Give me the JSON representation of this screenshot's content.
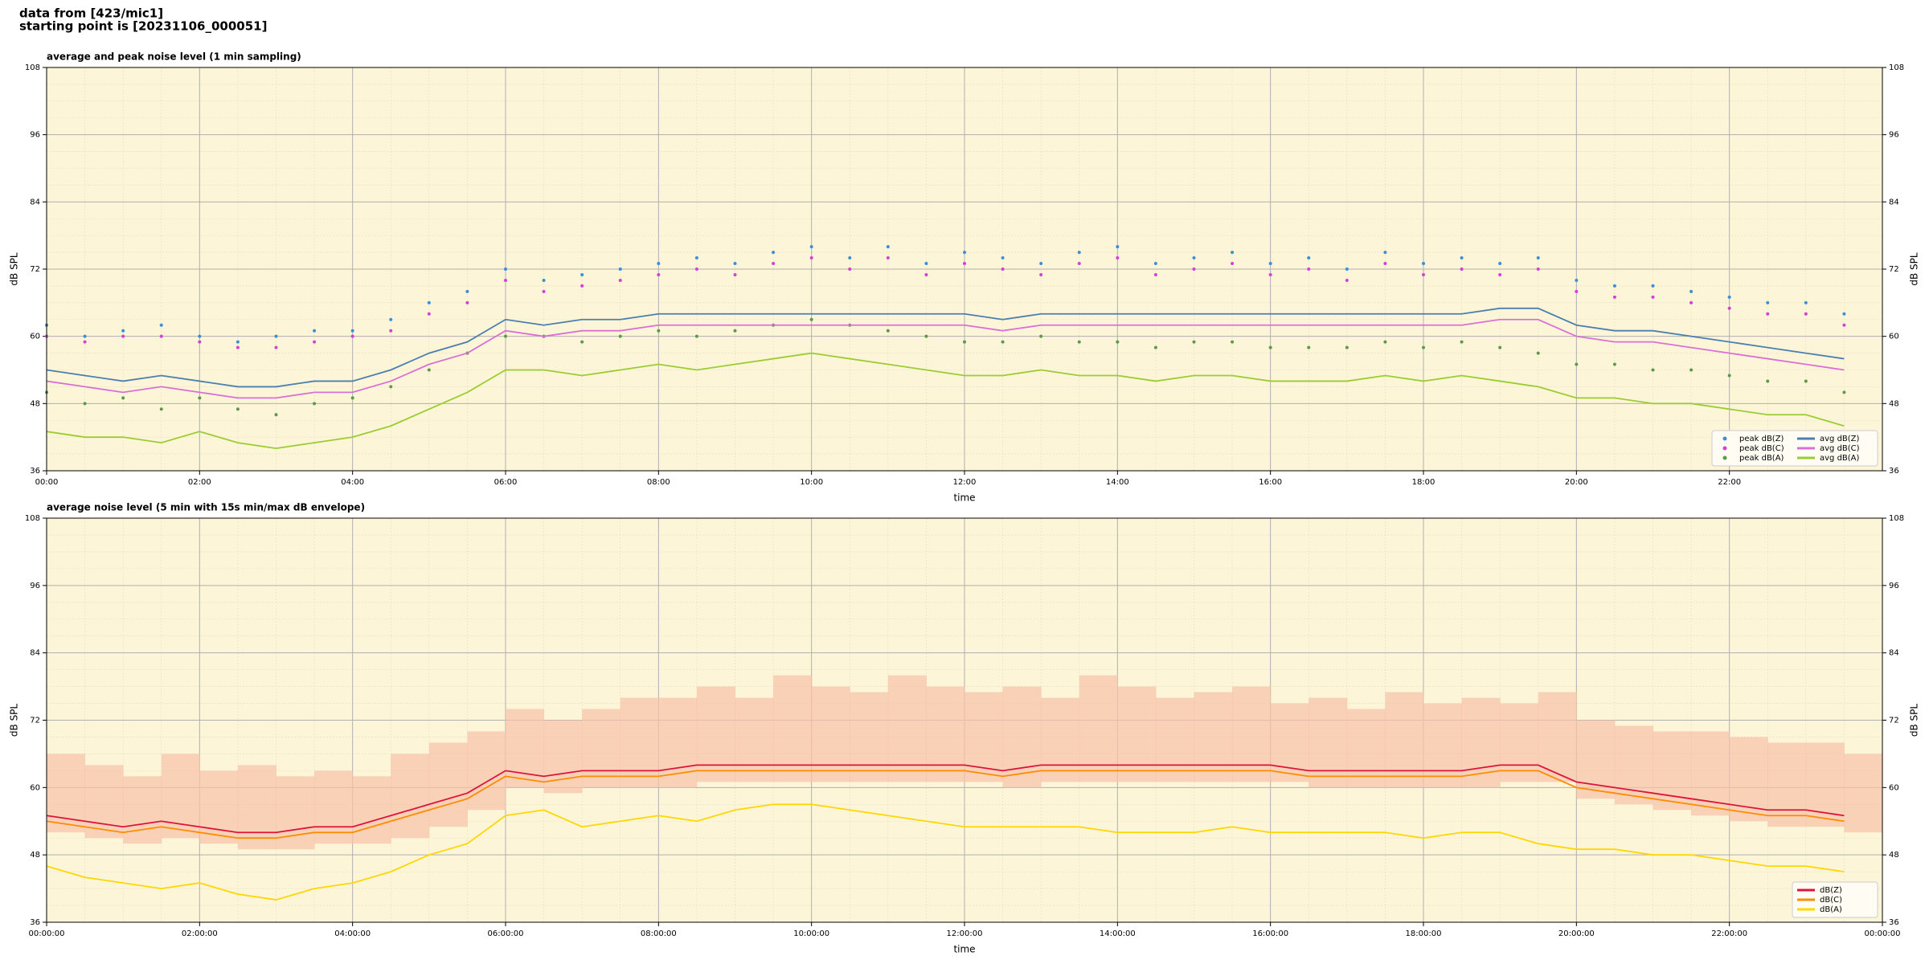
{
  "header": {
    "line1": "data from [423/mic1]",
    "line2": "starting point is [20231106_000051]"
  },
  "chart_data": [
    {
      "type": "line",
      "title": "average and peak noise level (1 min sampling)",
      "x_label": "time",
      "y_label": "dB SPL",
      "xlim": [
        0,
        24
      ],
      "ylim": [
        36,
        108
      ],
      "yticks": [
        36,
        48,
        60,
        72,
        84,
        96,
        108
      ],
      "xticks": [
        {
          "value": 0,
          "label": "00:00"
        },
        {
          "value": 2,
          "label": "02:00"
        },
        {
          "value": 4,
          "label": "04:00"
        },
        {
          "value": 6,
          "label": "06:00"
        },
        {
          "value": 8,
          "label": "08:00"
        },
        {
          "value": 10,
          "label": "10:00"
        },
        {
          "value": 12,
          "label": "12:00"
        },
        {
          "value": 14,
          "label": "14:00"
        },
        {
          "value": 16,
          "label": "16:00"
        },
        {
          "value": 18,
          "label": "18:00"
        },
        {
          "value": 20,
          "label": "20:00"
        },
        {
          "value": 22,
          "label": "22:00"
        }
      ],
      "grid": true,
      "legend": "lower right",
      "background": "#fdf5d8",
      "x": [
        0,
        0.5,
        1,
        1.5,
        2,
        2.5,
        3,
        3.5,
        4,
        4.5,
        5,
        5.5,
        6,
        6.5,
        7,
        7.5,
        8,
        8.5,
        9,
        9.5,
        10,
        10.5,
        11,
        11.5,
        12,
        12.5,
        13,
        13.5,
        14,
        14.5,
        15,
        15.5,
        16,
        16.5,
        17,
        17.5,
        18,
        18.5,
        19,
        19.5,
        20,
        20.5,
        21,
        21.5,
        22,
        22.5,
        23,
        23.5
      ],
      "series": [
        {
          "name": "peak dB(Z)",
          "type": "scatter",
          "color": "#3a8fd9",
          "values": [
            62,
            60,
            61,
            62,
            60,
            59,
            60,
            61,
            61,
            63,
            66,
            68,
            72,
            70,
            71,
            72,
            73,
            74,
            73,
            75,
            76,
            74,
            76,
            73,
            75,
            74,
            73,
            75,
            76,
            73,
            74,
            75,
            73,
            74,
            72,
            75,
            73,
            74,
            73,
            74,
            70,
            69,
            69,
            68,
            67,
            66,
            66,
            64
          ]
        },
        {
          "name": "peak dB(C)",
          "type": "scatter",
          "color": "#d63fd6",
          "values": [
            60,
            59,
            60,
            60,
            59,
            58,
            58,
            59,
            60,
            61,
            64,
            66,
            70,
            68,
            69,
            70,
            71,
            72,
            71,
            73,
            74,
            72,
            74,
            71,
            73,
            72,
            71,
            73,
            74,
            71,
            72,
            73,
            71,
            72,
            70,
            73,
            71,
            72,
            71,
            72,
            68,
            67,
            67,
            66,
            65,
            64,
            64,
            62
          ]
        },
        {
          "name": "peak dB(A)",
          "type": "scatter",
          "color": "#5a9a4a",
          "values": [
            50,
            48,
            49,
            47,
            49,
            47,
            46,
            48,
            49,
            51,
            54,
            57,
            60,
            60,
            59,
            60,
            61,
            60,
            61,
            62,
            63,
            62,
            61,
            60,
            59,
            59,
            60,
            59,
            59,
            58,
            59,
            59,
            58,
            58,
            58,
            59,
            58,
            59,
            58,
            57,
            55,
            55,
            54,
            54,
            53,
            52,
            52,
            50
          ]
        },
        {
          "name": "avg dB(Z)",
          "type": "line",
          "color": "#4a7fb0",
          "values": [
            54,
            53,
            52,
            53,
            52,
            51,
            51,
            52,
            52,
            54,
            57,
            59,
            63,
            62,
            63,
            63,
            64,
            64,
            64,
            64,
            64,
            64,
            64,
            64,
            64,
            63,
            64,
            64,
            64,
            64,
            64,
            64,
            64,
            64,
            64,
            64,
            64,
            64,
            65,
            65,
            62,
            61,
            61,
            60,
            59,
            58,
            57,
            56
          ]
        },
        {
          "name": "avg dB(C)",
          "type": "line",
          "color": "#da70d6",
          "values": [
            52,
            51,
            50,
            51,
            50,
            49,
            49,
            50,
            50,
            52,
            55,
            57,
            61,
            60,
            61,
            61,
            62,
            62,
            62,
            62,
            62,
            62,
            62,
            62,
            62,
            61,
            62,
            62,
            62,
            62,
            62,
            62,
            62,
            62,
            62,
            62,
            62,
            62,
            63,
            63,
            60,
            59,
            59,
            58,
            57,
            56,
            55,
            54
          ]
        },
        {
          "name": "avg dB(A)",
          "type": "line",
          "color": "#9acd32",
          "values": [
            43,
            42,
            42,
            41,
            43,
            41,
            40,
            41,
            42,
            44,
            47,
            50,
            54,
            54,
            53,
            54,
            55,
            54,
            55,
            56,
            57,
            56,
            55,
            54,
            53,
            53,
            54,
            53,
            53,
            52,
            53,
            53,
            52,
            52,
            52,
            53,
            52,
            53,
            52,
            51,
            49,
            49,
            48,
            48,
            47,
            46,
            46,
            44
          ]
        }
      ]
    },
    {
      "type": "line",
      "title": "average noise level (5 min with 15s min/max dB envelope)",
      "x_label": "time",
      "y_label": "dB SPL",
      "xlim": [
        0,
        24
      ],
      "ylim": [
        36,
        108
      ],
      "yticks": [
        36,
        48,
        60,
        72,
        84,
        96,
        108
      ],
      "xticks": [
        {
          "value": 0,
          "label": "00:00:00"
        },
        {
          "value": 2,
          "label": "02:00:00"
        },
        {
          "value": 4,
          "label": "04:00:00"
        },
        {
          "value": 6,
          "label": "06:00:00"
        },
        {
          "value": 8,
          "label": "08:00:00"
        },
        {
          "value": 10,
          "label": "10:00:00"
        },
        {
          "value": 12,
          "label": "12:00:00"
        },
        {
          "value": 14,
          "label": "14:00:00"
        },
        {
          "value": 16,
          "label": "16:00:00"
        },
        {
          "value": 18,
          "label": "18:00:00"
        },
        {
          "value": 20,
          "label": "20:00:00"
        },
        {
          "value": 22,
          "label": "22:00:00"
        },
        {
          "value": 24,
          "label": "00:00:00"
        }
      ],
      "grid": true,
      "legend": "lower right",
      "background": "#fdf5d8",
      "x": [
        0,
        0.5,
        1,
        1.5,
        2,
        2.5,
        3,
        3.5,
        4,
        4.5,
        5,
        5.5,
        6,
        6.5,
        7,
        7.5,
        8,
        8.5,
        9,
        9.5,
        10,
        10.5,
        11,
        11.5,
        12,
        12.5,
        13,
        13.5,
        14,
        14.5,
        15,
        15.5,
        16,
        16.5,
        17,
        17.5,
        18,
        18.5,
        19,
        19.5,
        20,
        20.5,
        21,
        21.5,
        22,
        22.5,
        23,
        23.5
      ],
      "envelope": {
        "color": "#f6c2aa",
        "upper": [
          66,
          64,
          62,
          66,
          63,
          64,
          62,
          63,
          62,
          66,
          68,
          70,
          74,
          72,
          74,
          76,
          76,
          78,
          76,
          80,
          78,
          77,
          80,
          78,
          77,
          78,
          76,
          80,
          78,
          76,
          77,
          78,
          75,
          76,
          74,
          77,
          75,
          76,
          75,
          77,
          72,
          71,
          70,
          70,
          69,
          68,
          68,
          66
        ],
        "lower": [
          52,
          51,
          50,
          51,
          50,
          49,
          49,
          50,
          50,
          51,
          53,
          56,
          60,
          59,
          60,
          60,
          60,
          61,
          61,
          61,
          61,
          61,
          61,
          61,
          61,
          60,
          61,
          61,
          61,
          61,
          61,
          61,
          61,
          60,
          60,
          60,
          60,
          60,
          61,
          61,
          58,
          57,
          56,
          55,
          54,
          53,
          53,
          52
        ]
      },
      "series": [
        {
          "name": "dB(Z)",
          "type": "line",
          "color": "#dc143c",
          "values": [
            55,
            54,
            53,
            54,
            53,
            52,
            52,
            53,
            53,
            55,
            57,
            59,
            63,
            62,
            63,
            63,
            63,
            64,
            64,
            64,
            64,
            64,
            64,
            64,
            64,
            63,
            64,
            64,
            64,
            64,
            64,
            64,
            64,
            63,
            63,
            63,
            63,
            63,
            64,
            64,
            61,
            60,
            59,
            58,
            57,
            56,
            56,
            55
          ]
        },
        {
          "name": "dB(C)",
          "type": "line",
          "color": "#ff8c00",
          "values": [
            54,
            53,
            52,
            53,
            52,
            51,
            51,
            52,
            52,
            54,
            56,
            58,
            62,
            61,
            62,
            62,
            62,
            63,
            63,
            63,
            63,
            63,
            63,
            63,
            63,
            62,
            63,
            63,
            63,
            63,
            63,
            63,
            63,
            62,
            62,
            62,
            62,
            62,
            63,
            63,
            60,
            59,
            58,
            57,
            56,
            55,
            55,
            54
          ]
        },
        {
          "name": "dB(A)",
          "type": "line",
          "color": "#ffd700",
          "values": [
            46,
            44,
            43,
            42,
            43,
            41,
            40,
            42,
            43,
            45,
            48,
            50,
            55,
            56,
            53,
            54,
            55,
            54,
            56,
            57,
            57,
            56,
            55,
            54,
            53,
            53,
            53,
            53,
            52,
            52,
            52,
            53,
            52,
            52,
            52,
            52,
            51,
            52,
            52,
            50,
            49,
            49,
            48,
            48,
            47,
            46,
            46,
            45
          ]
        }
      ]
    }
  ]
}
